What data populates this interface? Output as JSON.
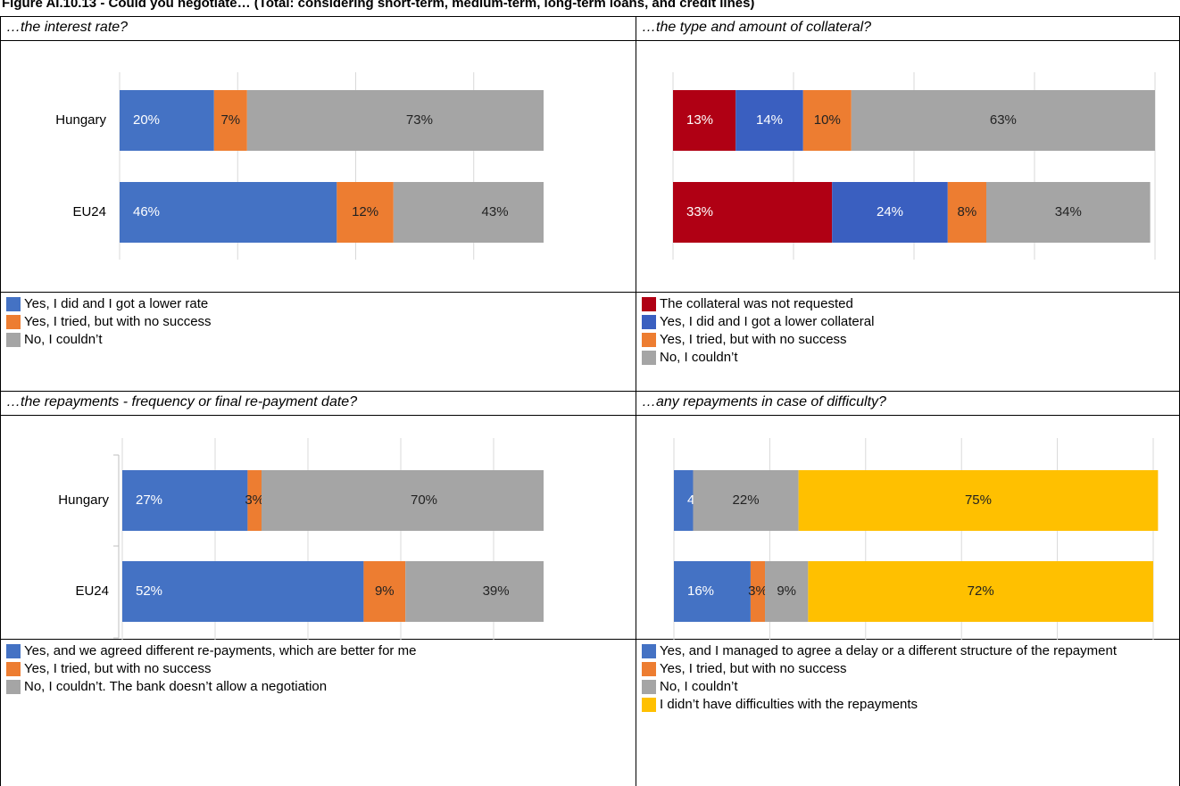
{
  "title": "Figure AI.10.13 - Could you negotiate… (Total: considering short-term, medium-term, long-term loans, and credit lines)",
  "chart_data": [
    {
      "type": "bar",
      "orientation": "horizontal",
      "stacked": true,
      "title": "…the interest rate?",
      "categories": [
        "Hungary",
        "EU24"
      ],
      "xlim": [
        0,
        100
      ],
      "xticks": [
        0,
        25,
        50,
        75,
        100
      ],
      "xtick_labels": false,
      "grid": true,
      "series": [
        {
          "name": "Yes, I did and I got a lower rate",
          "color": "#4472c4",
          "values": [
            20,
            46
          ],
          "value_labels": [
            "20%",
            "46%"
          ]
        },
        {
          "name": "Yes, I tried, but with no success",
          "color": "#ed7d31",
          "values": [
            7,
            12
          ],
          "value_labels": [
            "7%",
            "12%"
          ]
        },
        {
          "name": "No, I couldn’t",
          "color": "#a5a5a5",
          "values": [
            73,
            43
          ],
          "value_labels": [
            "73%",
            "43%"
          ]
        }
      ]
    },
    {
      "type": "bar",
      "orientation": "horizontal",
      "stacked": true,
      "title": "…the type and amount of collateral?",
      "xlim": [
        0,
        100
      ],
      "xticks": [
        0,
        25,
        50,
        75,
        100
      ],
      "xtick_labels": false,
      "grid": true,
      "series": [
        {
          "name": "The collateral was not requested",
          "color": "#b00014",
          "values": [
            13,
            33
          ],
          "value_labels": [
            "13%",
            "33%"
          ]
        },
        {
          "name": "Yes, I did and I got a lower collateral",
          "color": "#3a5fc0",
          "values": [
            14,
            24
          ],
          "value_labels": [
            "14%",
            "24%"
          ]
        },
        {
          "name": "Yes, I tried, but with no success",
          "color": "#ed7d31",
          "values": [
            10,
            8
          ],
          "value_labels": [
            "10%",
            "8%"
          ]
        },
        {
          "name": "No, I couldn’t",
          "color": "#a5a5a5",
          "values": [
            63,
            34
          ],
          "value_labels": [
            "63%",
            "34%"
          ]
        }
      ]
    },
    {
      "type": "bar",
      "orientation": "horizontal",
      "stacked": true,
      "title": "…the repayments - frequency or final re-payment date?",
      "categories": [
        "Hungary",
        "EU24"
      ],
      "xlim": [
        0,
        100
      ],
      "xticks": [
        0,
        20,
        40,
        60,
        80,
        100
      ],
      "xtick_labels": false,
      "grid": true,
      "category_axis_line": true,
      "series": [
        {
          "name": "Yes, and we agreed different re-payments, which are better for me",
          "color": "#4472c4",
          "values": [
            27,
            52
          ],
          "value_labels": [
            "27%",
            "52%"
          ]
        },
        {
          "name": "Yes, I tried, but with no success",
          "color": "#ed7d31",
          "values": [
            3,
            9
          ],
          "value_labels": [
            "3%",
            "9%"
          ]
        },
        {
          "name": "No, I couldn’t. The bank doesn’t allow a negotiation",
          "color": "#a5a5a5",
          "values": [
            70,
            39
          ],
          "value_labels": [
            "70%",
            "39%"
          ]
        }
      ]
    },
    {
      "type": "bar",
      "orientation": "horizontal",
      "stacked": true,
      "title": "…any repayments in case of difficulty?",
      "xlim": [
        0,
        100
      ],
      "xticks": [
        0,
        20,
        40,
        60,
        80,
        100
      ],
      "xtick_labels": false,
      "grid": true,
      "series": [
        {
          "name": "Yes, and I managed to agree a delay or a different structure of the repayment",
          "color": "#4472c4",
          "values": [
            4,
            16
          ],
          "value_labels": [
            "4%",
            "16%"
          ]
        },
        {
          "name": "Yes, I tried, but with no success",
          "color": "#ed7d31",
          "values": [
            null,
            3
          ],
          "value_labels": [
            null,
            "3%"
          ]
        },
        {
          "name": "No, I couldn’t",
          "color": "#a5a5a5",
          "values": [
            22,
            9
          ],
          "value_labels": [
            "22%",
            "9%"
          ]
        },
        {
          "name": "I didn’t have difficulties with the repayments",
          "color": "#ffc000",
          "values": [
            75,
            72
          ],
          "value_labels": [
            "75%",
            "72%"
          ]
        }
      ]
    }
  ]
}
